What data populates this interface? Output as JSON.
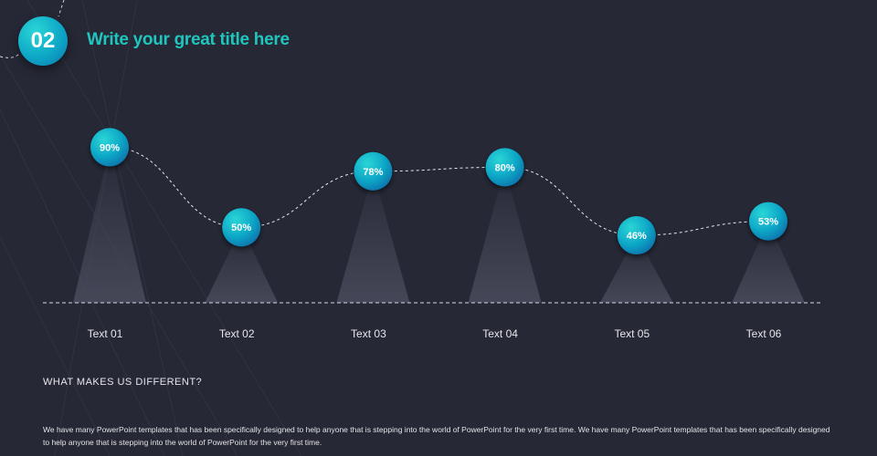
{
  "header": {
    "number": "02",
    "title": "Write your great title here"
  },
  "chart_data": {
    "type": "line",
    "categories": [
      "Text 01",
      "Text 02",
      "Text 03",
      "Text 04",
      "Text 05",
      "Text 06"
    ],
    "values": [
      90,
      50,
      78,
      80,
      46,
      53
    ],
    "value_suffix": "%",
    "title": "",
    "xlabel": "",
    "ylabel": "",
    "grid": false
  },
  "section": {
    "heading": "WHAT MAKES US DIFFERENT?",
    "body": "We have many PowerPoint templates that has been specifically designed to help anyone that is stepping into the world of PowerPoint for the very first time. We have many PowerPoint templates that has been specifically designed to help anyone that is stepping into the world of PowerPoint for the very first time."
  },
  "colors": {
    "background": "#262836",
    "accent": "#1fc6bd",
    "marker_light": "#2ad6d6",
    "marker_dark": "#0a76ad"
  }
}
